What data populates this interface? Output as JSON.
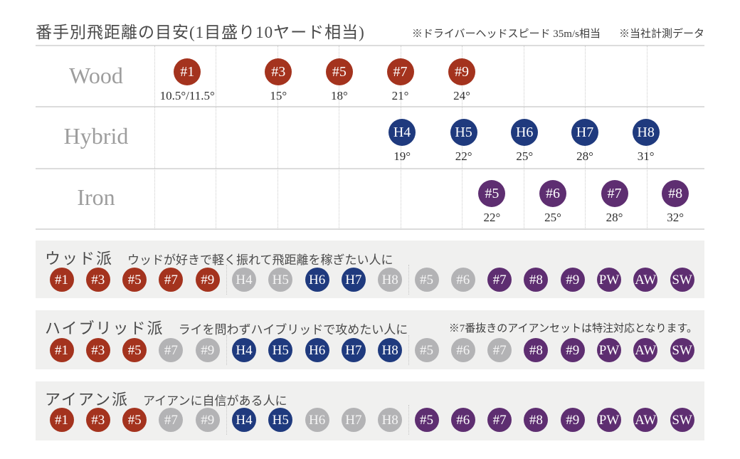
{
  "title": "番手別飛距離の目安(1目盛り10ヤード相当)",
  "header_notes": {
    "head_speed": "※ドライバーヘッドスピード 35m/s相当",
    "measurement": "※当社計測データ"
  },
  "colors": {
    "wood": "#a4331e",
    "hybrid": "#1f3a7e",
    "iron": "#5e2e71",
    "inactive": "#b3b3b5"
  },
  "chart_data": {
    "type": "scatter",
    "title": "番手別飛距離の目安(1目盛り10ヤード相当)",
    "axis_note": "1目盛り10ヤード相当 (one grid division = 10 yards)",
    "grid_divisions_visible": 9,
    "rows": [
      {
        "label": "Wood",
        "type": "wood",
        "clubs": [
          {
            "label": "#1",
            "loft": "10.5°/11.5°",
            "pos": 0.54
          },
          {
            "label": "#3",
            "loft": "15°",
            "pos": 2.02
          },
          {
            "label": "#5",
            "loft": "18°",
            "pos": 3.01
          },
          {
            "label": "#7",
            "loft": "21°",
            "pos": 4.0
          },
          {
            "label": "#9",
            "loft": "24°",
            "pos": 5.0
          }
        ]
      },
      {
        "label": "Hybrid",
        "type": "hybrid",
        "clubs": [
          {
            "label": "H4",
            "loft": "19°",
            "pos": 4.03
          },
          {
            "label": "H5",
            "loft": "22°",
            "pos": 5.03
          },
          {
            "label": "H6",
            "loft": "25°",
            "pos": 6.02
          },
          {
            "label": "H7",
            "loft": "28°",
            "pos": 7.0
          },
          {
            "label": "H8",
            "loft": "31°",
            "pos": 7.99
          }
        ]
      },
      {
        "label": "Iron",
        "type": "iron",
        "clubs": [
          {
            "label": "#5",
            "loft": "22°",
            "pos": 5.49
          },
          {
            "label": "#6",
            "loft": "25°",
            "pos": 6.48
          },
          {
            "label": "#7",
            "loft": "28°",
            "pos": 7.48
          },
          {
            "label": "#8",
            "loft": "32°",
            "pos": 8.47
          }
        ]
      }
    ]
  },
  "sections": [
    {
      "heading": "ウッド派",
      "subtitle": "ウッドが好きで軽く振れて飛距離を稼ぎたい人に",
      "note": "",
      "clubs": [
        {
          "label": "#1",
          "type": "wood",
          "active": true
        },
        {
          "label": "#3",
          "type": "wood",
          "active": true
        },
        {
          "label": "#5",
          "type": "wood",
          "active": true
        },
        {
          "label": "#7",
          "type": "wood",
          "active": true
        },
        {
          "label": "#9",
          "type": "wood",
          "active": true
        },
        {
          "label": "H4",
          "type": "hybrid",
          "active": false
        },
        {
          "label": "H5",
          "type": "hybrid",
          "active": false
        },
        {
          "label": "H6",
          "type": "hybrid",
          "active": true
        },
        {
          "label": "H7",
          "type": "hybrid",
          "active": true
        },
        {
          "label": "H8",
          "type": "hybrid",
          "active": false
        },
        {
          "label": "#5",
          "type": "iron",
          "active": false
        },
        {
          "label": "#6",
          "type": "iron",
          "active": false
        },
        {
          "label": "#7",
          "type": "iron",
          "active": true
        },
        {
          "label": "#8",
          "type": "iron",
          "active": true
        },
        {
          "label": "#9",
          "type": "iron",
          "active": true
        },
        {
          "label": "PW",
          "type": "iron",
          "active": true
        },
        {
          "label": "AW",
          "type": "iron",
          "active": true
        },
        {
          "label": "SW",
          "type": "iron",
          "active": true
        }
      ]
    },
    {
      "heading": "ハイブリッド派",
      "subtitle": "ライを問わずハイブリッドで攻めたい人に",
      "note": "※7番抜きのアイアンセットは特注対応となります。",
      "clubs": [
        {
          "label": "#1",
          "type": "wood",
          "active": true
        },
        {
          "label": "#3",
          "type": "wood",
          "active": true
        },
        {
          "label": "#5",
          "type": "wood",
          "active": true
        },
        {
          "label": "#7",
          "type": "wood",
          "active": false
        },
        {
          "label": "#9",
          "type": "wood",
          "active": false
        },
        {
          "label": "H4",
          "type": "hybrid",
          "active": true
        },
        {
          "label": "H5",
          "type": "hybrid",
          "active": true
        },
        {
          "label": "H6",
          "type": "hybrid",
          "active": true
        },
        {
          "label": "H7",
          "type": "hybrid",
          "active": true
        },
        {
          "label": "H8",
          "type": "hybrid",
          "active": true
        },
        {
          "label": "#5",
          "type": "iron",
          "active": false
        },
        {
          "label": "#6",
          "type": "iron",
          "active": false
        },
        {
          "label": "#7",
          "type": "iron",
          "active": false
        },
        {
          "label": "#8",
          "type": "iron",
          "active": true
        },
        {
          "label": "#9",
          "type": "iron",
          "active": true
        },
        {
          "label": "PW",
          "type": "iron",
          "active": true
        },
        {
          "label": "AW",
          "type": "iron",
          "active": true
        },
        {
          "label": "SW",
          "type": "iron",
          "active": true
        }
      ]
    },
    {
      "heading": "アイアン派",
      "subtitle": "アイアンに自信がある人に",
      "note": "",
      "clubs": [
        {
          "label": "#1",
          "type": "wood",
          "active": true
        },
        {
          "label": "#3",
          "type": "wood",
          "active": true
        },
        {
          "label": "#5",
          "type": "wood",
          "active": true
        },
        {
          "label": "#7",
          "type": "wood",
          "active": false
        },
        {
          "label": "#9",
          "type": "wood",
          "active": false
        },
        {
          "label": "H4",
          "type": "hybrid",
          "active": true
        },
        {
          "label": "H5",
          "type": "hybrid",
          "active": true
        },
        {
          "label": "H6",
          "type": "hybrid",
          "active": false
        },
        {
          "label": "H7",
          "type": "hybrid",
          "active": false
        },
        {
          "label": "H8",
          "type": "hybrid",
          "active": false
        },
        {
          "label": "#5",
          "type": "iron",
          "active": true
        },
        {
          "label": "#6",
          "type": "iron",
          "active": true
        },
        {
          "label": "#7",
          "type": "iron",
          "active": true
        },
        {
          "label": "#8",
          "type": "iron",
          "active": true
        },
        {
          "label": "#9",
          "type": "iron",
          "active": true
        },
        {
          "label": "PW",
          "type": "iron",
          "active": true
        },
        {
          "label": "AW",
          "type": "iron",
          "active": true
        },
        {
          "label": "SW",
          "type": "iron",
          "active": true
        }
      ]
    }
  ]
}
